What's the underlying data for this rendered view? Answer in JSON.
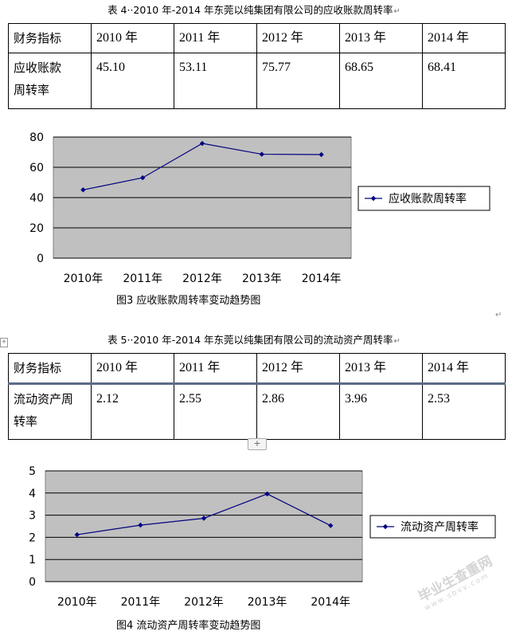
{
  "table1": {
    "caption": "表 4··2010 年-2014 年东莞以纯集团有限公司的应收账款周转率",
    "header": [
      "财务指标",
      "2010 年",
      "2011 年",
      "2012 年",
      "2013 年",
      "2014 年"
    ],
    "row_label_line1": "应收账款",
    "row_label_line2": "周转率",
    "values": [
      "45.10",
      "53.11",
      "75.77",
      "68.65",
      "68.41"
    ]
  },
  "figure3_caption": "图3   应收账款周转率变动趋势图",
  "table2": {
    "caption": "表 5··2010 年-2014 年东莞以纯集团有限公司的流动资产周转率",
    "header": [
      "财务指标",
      "2010 年",
      "2011 年",
      "2012 年",
      "2013 年",
      "2014 年"
    ],
    "row_label_line1": "流动资产周",
    "row_label_line2": "转率",
    "values": [
      "2.12",
      "2.55",
      "2.86",
      "3.96",
      "2.53"
    ]
  },
  "figure4_caption": "图4   流动资产周转率变动趋势图",
  "watermark": {
    "main": "毕业生查重网",
    "sub": "www.sbvv.com"
  },
  "ui": {
    "table_move_handle": "+",
    "add_row_button": "+",
    "paragraph_mark": "↵"
  },
  "colors": {
    "plot_background": "#c0c0c0",
    "series_color": "#000080"
  },
  "chart_data": [
    {
      "type": "line",
      "categories": [
        "2010年",
        "2011年",
        "2012年",
        "2013年",
        "2014年"
      ],
      "series": [
        {
          "name": "应收账款周转率",
          "values": [
            45.1,
            53.11,
            75.77,
            68.65,
            68.41
          ]
        }
      ],
      "yticks": [
        "0",
        "20",
        "40",
        "60",
        "80"
      ],
      "ylim": [
        0,
        80
      ],
      "grid": true,
      "legend": "right",
      "title": ""
    },
    {
      "type": "line",
      "categories": [
        "2010年",
        "2011年",
        "2012年",
        "2013年",
        "2014年"
      ],
      "series": [
        {
          "name": "流动资产周转率",
          "values": [
            2.12,
            2.55,
            2.86,
            3.96,
            2.53
          ]
        }
      ],
      "yticks": [
        "0",
        "1",
        "2",
        "3",
        "4",
        "5"
      ],
      "ylim": [
        0,
        5
      ],
      "grid": true,
      "legend": "right",
      "title": ""
    }
  ]
}
